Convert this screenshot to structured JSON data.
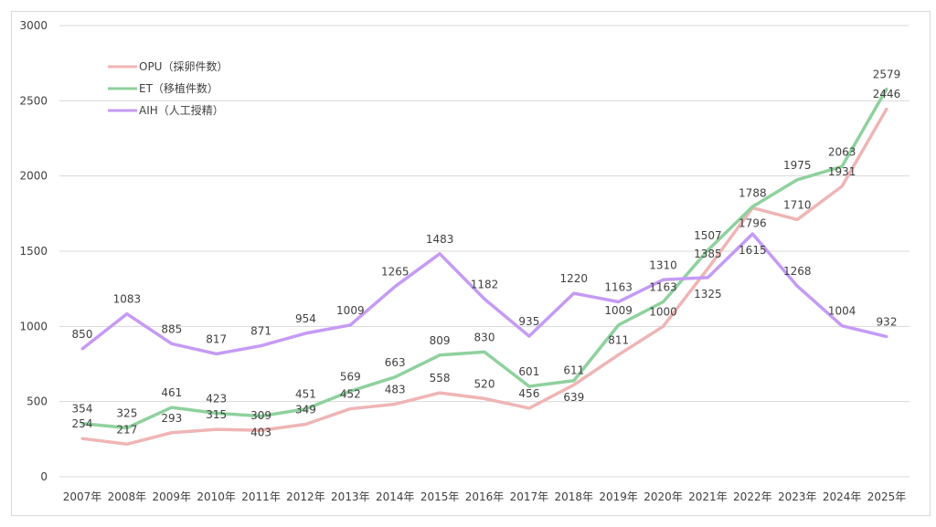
{
  "chart_data": {
    "type": "line",
    "categories": [
      "2007年",
      "2008年",
      "2009年",
      "2010年",
      "2011年",
      "2012年",
      "2013年",
      "2014年",
      "2015年",
      "2016年",
      "2017年",
      "2018年",
      "2019年",
      "2020年",
      "2021年",
      "2022年",
      "2023年",
      "2024年",
      "2025年"
    ],
    "series": [
      {
        "name": "OPU（採卵件数）",
        "color": "#efb5b5",
        "values": [
          254,
          217,
          293,
          315,
          309,
          349,
          452,
          483,
          558,
          520,
          456,
          611,
          811,
          1000,
          1385,
          1788,
          1710,
          1931,
          2446
        ]
      },
      {
        "name": "ET（移植件数）",
        "color": "#8fd19e",
        "values": [
          354,
          325,
          461,
          423,
          403,
          451,
          569,
          663,
          809,
          830,
          601,
          639,
          1009,
          1163,
          1507,
          1796,
          1975,
          2063,
          2579
        ]
      },
      {
        "name": "AIH（人工授精）",
        "color": "#c59bf5",
        "values": [
          850,
          1083,
          885,
          817,
          871,
          954,
          1009,
          1265,
          1483,
          1182,
          935,
          1220,
          1163,
          1310,
          1325,
          1615,
          1268,
          1004,
          932
        ]
      }
    ],
    "yticks": [
      "0",
      "500",
      "1000",
      "1500",
      "2000",
      "2500",
      "3000"
    ],
    "ylim": [
      0,
      3000
    ],
    "grid": true,
    "legend": "top-left",
    "data_labels": true
  }
}
